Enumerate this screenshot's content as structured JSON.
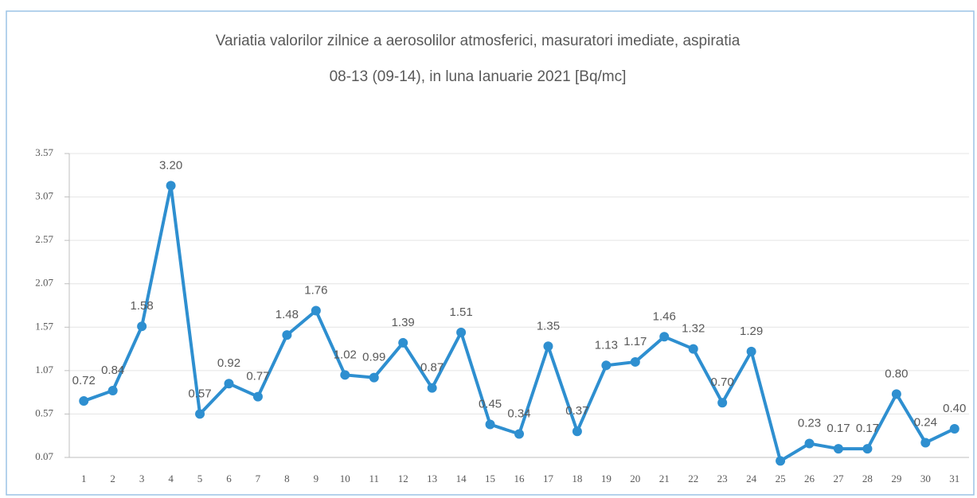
{
  "chart_data": {
    "type": "line",
    "title": [
      "Variatia valorilor zilnice a aerosolilor atmosferici, masuratori imediate, aspiratia",
      "08-13 (09-14),  in luna Ianuarie 2021 [Bq/mc]"
    ],
    "categories": [
      "1",
      "2",
      "3",
      "4",
      "5",
      "6",
      "7",
      "8",
      "9",
      "10",
      "11",
      "12",
      "13",
      "14",
      "15",
      "16",
      "17",
      "18",
      "19",
      "20",
      "21",
      "22",
      "23",
      "24",
      "25",
      "26",
      "27",
      "28",
      "29",
      "30",
      "31"
    ],
    "series": [
      {
        "color": "#2e8fd0",
        "values": [
          0.72,
          0.84,
          1.58,
          3.2,
          0.57,
          0.92,
          0.77,
          1.48,
          1.76,
          1.02,
          0.99,
          1.39,
          0.87,
          1.51,
          0.45,
          0.34,
          1.35,
          0.37,
          1.13,
          1.17,
          1.46,
          1.32,
          0.7,
          1.29,
          0.03,
          0.23,
          0.17,
          0.17,
          0.8,
          0.24,
          0.4
        ],
        "value_labels": [
          "0.72",
          "0.84",
          "1.58",
          "3.20",
          "0.57",
          "0.92",
          "0.77",
          "1.48",
          "1.76",
          "1.02",
          "0.99",
          "1.39",
          "0.87",
          "1.51",
          "0.45",
          "0.34",
          "1.35",
          "0.37",
          "1.13",
          "1.17",
          "1.46",
          "1.32",
          "0.70",
          "1.29",
          null,
          "0.23",
          "0.17",
          "0.17",
          "0.80",
          "0.24",
          "0.40"
        ]
      }
    ],
    "ylim": [
      0.07,
      3.57
    ],
    "yticks": [
      0.07,
      0.57,
      1.07,
      1.57,
      2.07,
      2.57,
      3.07,
      3.57
    ],
    "grid": true
  }
}
